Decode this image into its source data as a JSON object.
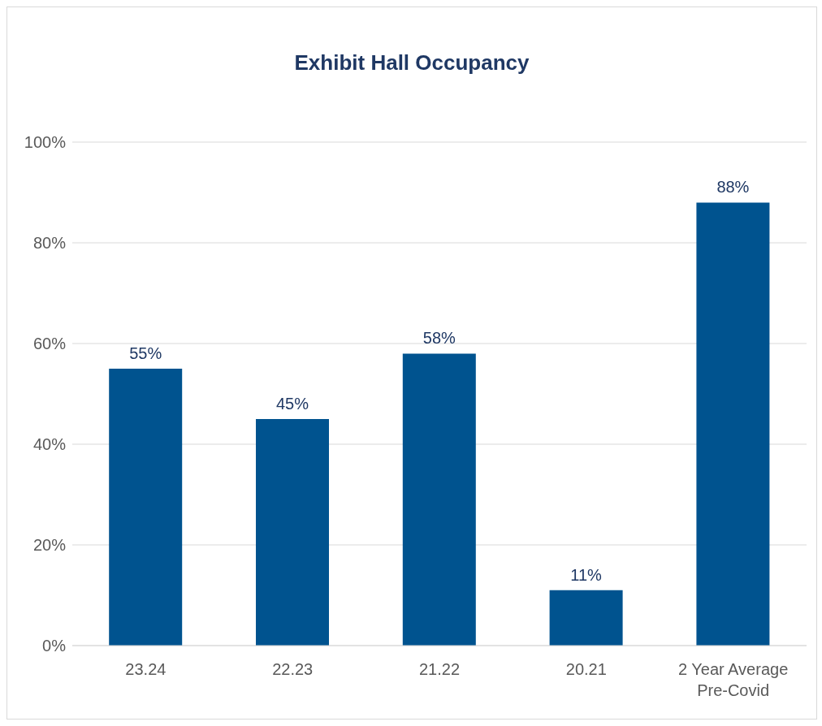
{
  "chart_data": {
    "type": "bar",
    "title": "Exhibit Hall Occupancy",
    "categories": [
      "23.24",
      "22.23",
      "21.22",
      "20.21",
      "2 Year Average Pre-Covid"
    ],
    "values": [
      55,
      45,
      58,
      11,
      88
    ],
    "value_labels": [
      "55%",
      "45%",
      "58%",
      "11%",
      "88%"
    ],
    "color": "#00538f",
    "ylim": [
      0,
      100
    ],
    "yticks": [
      {
        "value": 0,
        "label": "0%"
      },
      {
        "value": 20,
        "label": "20%"
      },
      {
        "value": 40,
        "label": "40%"
      },
      {
        "value": 60,
        "label": "60%"
      },
      {
        "value": 80,
        "label": "80%"
      },
      {
        "value": 100,
        "label": "100%"
      }
    ],
    "grid": "y",
    "legend": false
  }
}
